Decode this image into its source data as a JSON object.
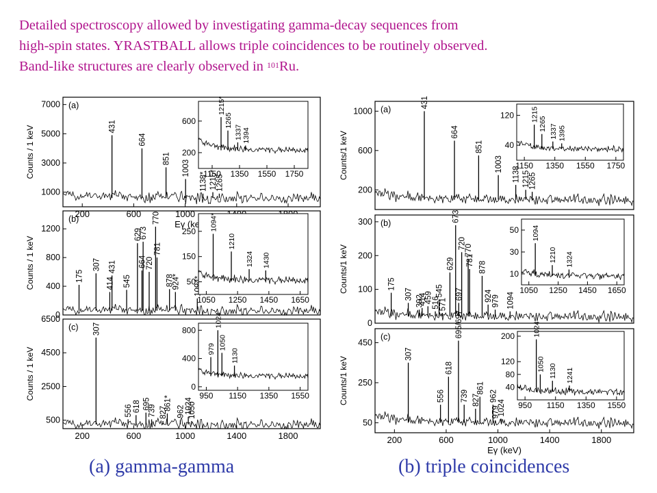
{
  "intro": {
    "line1": "Detailed spectroscopy allowed by investigating gamma-decay sequences from",
    "line2": "high-spin states. YRASTBALL allows triple coincidences to be routinely observed.",
    "line3_pre": "Band-like structures are clearly observed in ",
    "line3_sup": "101",
    "line3_post": "Ru."
  },
  "captions": {
    "a": "(a) gamma-gamma",
    "b": "(b) triple coincidences"
  },
  "chart_data": [
    {
      "type": "line",
      "group": "gamma-gamma",
      "panel": "(a)",
      "xlabel": "Eγ (keV)",
      "ylabel": "Counts / 1 keV",
      "xlim": [
        50,
        2050
      ],
      "ylim": [
        0,
        7500
      ],
      "xticks": [
        200,
        600,
        1000,
        1400,
        1800
      ],
      "yticks": [
        "1000",
        "3000",
        "5000",
        "7000"
      ],
      "baseline": 600,
      "peaks": [
        {
          "label": "431",
          "x": 431,
          "y": 4900
        },
        {
          "label": "664",
          "x": 664,
          "y": 4000
        },
        {
          "label": "851",
          "x": 851,
          "y": 2700
        },
        {
          "label": "1003",
          "x": 1003,
          "y": 1900
        },
        {
          "label": "1138*",
          "x": 1138,
          "y": 900
        },
        {
          "label": "1215*",
          "x": 1215,
          "y": 1000
        },
        {
          "label": "1265",
          "x": 1265,
          "y": 900
        }
      ],
      "inset": {
        "xlim": [
          1050,
          1850
        ],
        "ylim": [
          0,
          850
        ],
        "xticks": [
          1150,
          1350,
          1550,
          1750
        ],
        "yticks": [
          "200",
          "600"
        ],
        "baseline": 230,
        "peaks": [
          {
            "label": "1215*",
            "x": 1215,
            "y": 650
          },
          {
            "label": "1265",
            "x": 1265,
            "y": 480
          },
          {
            "label": "1337",
            "x": 1337,
            "y": 330
          },
          {
            "label": "1394",
            "x": 1394,
            "y": 290
          }
        ]
      }
    },
    {
      "type": "line",
      "group": "gamma-gamma",
      "panel": "(b)",
      "ylabel": "Counts / 1 keV",
      "xlim": [
        50,
        2050
      ],
      "ylim": [
        0,
        1450
      ],
      "yticks": [
        "0",
        "400",
        "800",
        "1200"
      ],
      "baseline": 60,
      "peaks": [
        {
          "label": "175",
          "x": 175,
          "y": 420
        },
        {
          "label": "307",
          "x": 307,
          "y": 580
        },
        {
          "label": "414",
          "x": 414,
          "y": 320
        },
        {
          "label": "431",
          "x": 431,
          "y": 550
        },
        {
          "label": "545",
          "x": 545,
          "y": 350
        },
        {
          "label": "629",
          "x": 629,
          "y": 1000
        },
        {
          "label": "664",
          "x": 664,
          "y": 620
        },
        {
          "label": "673",
          "x": 673,
          "y": 1020
        },
        {
          "label": "720",
          "x": 720,
          "y": 600
        },
        {
          "label": "770",
          "x": 770,
          "y": 1230
        },
        {
          "label": "781",
          "x": 781,
          "y": 800
        },
        {
          "label": "878",
          "x": 878,
          "y": 360
        },
        {
          "label": "924*",
          "x": 924,
          "y": 320
        },
        {
          "label": "1094*",
          "x": 1094,
          "y": 230
        }
      ],
      "inset": {
        "xlim": [
          1000,
          1700
        ],
        "ylim": [
          0,
          320
        ],
        "xticks": [
          1050,
          1250,
          1450,
          1650
        ],
        "yticks": [
          "50",
          "150",
          "250"
        ],
        "baseline": 55,
        "peaks": [
          {
            "label": "1094*",
            "x": 1094,
            "y": 240
          },
          {
            "label": "1210",
            "x": 1210,
            "y": 170
          },
          {
            "label": "1324",
            "x": 1324,
            "y": 100
          },
          {
            "label": "1430",
            "x": 1430,
            "y": 95
          }
        ]
      }
    },
    {
      "type": "line",
      "group": "gamma-gamma",
      "panel": "(c)",
      "ylabel": "Counts / 1 keV",
      "xlim": [
        50,
        2050
      ],
      "ylim": [
        0,
        6500
      ],
      "xticks": [
        200,
        600,
        1000,
        1400,
        1800
      ],
      "yticks": [
        "500",
        "2500",
        "4500",
        "6500"
      ],
      "baseline": 250,
      "peaks": [
        {
          "label": "307",
          "x": 307,
          "y": 5400
        },
        {
          "label": "556",
          "x": 556,
          "y": 550
        },
        {
          "label": "618",
          "x": 618,
          "y": 800
        },
        {
          "label": "695",
          "x": 695,
          "y": 950
        },
        {
          "label": "739",
          "x": 739,
          "y": 550
        },
        {
          "label": "827",
          "x": 827,
          "y": 450
        },
        {
          "label": "861*",
          "x": 861,
          "y": 900
        },
        {
          "label": "962",
          "x": 962,
          "y": 500
        },
        {
          "label": "1024",
          "x": 1024,
          "y": 700
        },
        {
          "label": "1050",
          "x": 1050,
          "y": 450
        }
      ],
      "inset": {
        "xlim": [
          900,
          1600
        ],
        "ylim": [
          -50,
          900
        ],
        "xticks": [
          950,
          1150,
          1350,
          1550
        ],
        "yticks": [
          "0",
          "400",
          "800"
        ],
        "baseline": 150,
        "peaks": [
          {
            "label": "979",
            "x": 979,
            "y": 420
          },
          {
            "label": "1024",
            "x": 1024,
            "y": 800
          },
          {
            "label": "1050",
            "x": 1050,
            "y": 480
          },
          {
            "label": "1130",
            "x": 1130,
            "y": 300
          }
        ]
      }
    },
    {
      "type": "line",
      "group": "triple coincidences",
      "panel": "(a)",
      "ylabel": "Counts/1 keV",
      "xlim": [
        50,
        2050
      ],
      "ylim": [
        0,
        1100
      ],
      "yticks": [
        "200",
        "600",
        "1000"
      ],
      "baseline": 100,
      "peaks": [
        {
          "label": "431",
          "x": 431,
          "y": 1000
        },
        {
          "label": "664",
          "x": 664,
          "y": 700
        },
        {
          "label": "851",
          "x": 851,
          "y": 550
        },
        {
          "label": "1003",
          "x": 1003,
          "y": 350
        },
        {
          "label": "1138",
          "x": 1138,
          "y": 250
        },
        {
          "label": "1215",
          "x": 1215,
          "y": 200
        },
        {
          "label": "1265",
          "x": 1265,
          "y": 180
        }
      ],
      "inset": {
        "xlim": [
          1100,
          1800
        ],
        "ylim": [
          0,
          150
        ],
        "xticks": [
          1150,
          1350,
          1550,
          1750
        ],
        "yticks": [
          "40",
          "120"
        ],
        "baseline": 30,
        "peaks": [
          {
            "label": "1215",
            "x": 1215,
            "y": 95
          },
          {
            "label": "1265",
            "x": 1265,
            "y": 70
          },
          {
            "label": "1337",
            "x": 1337,
            "y": 50
          },
          {
            "label": "1395",
            "x": 1395,
            "y": 45
          }
        ]
      }
    },
    {
      "type": "line",
      "group": "triple coincidences",
      "panel": "(b)",
      "ylabel": "Counts/1 keV",
      "xlim": [
        50,
        2050
      ],
      "ylim": [
        0,
        320
      ],
      "yticks": [
        "0",
        "100",
        "200",
        "300"
      ],
      "baseline": 20,
      "peaks": [
        {
          "label": "175",
          "x": 175,
          "y": 90
        },
        {
          "label": "307",
          "x": 307,
          "y": 60
        },
        {
          "label": "392",
          "x": 392,
          "y": 40
        },
        {
          "label": "414",
          "x": 414,
          "y": 45
        },
        {
          "label": "459",
          "x": 459,
          "y": 50
        },
        {
          "label": "516",
          "x": 516,
          "y": 35
        },
        {
          "label": "545",
          "x": 545,
          "y": 70
        },
        {
          "label": "571",
          "x": 571,
          "y": 30
        },
        {
          "label": "629",
          "x": 629,
          "y": 150
        },
        {
          "label": "673",
          "x": 673,
          "y": 290
        },
        {
          "label": "697",
          "x": 697,
          "y": 60
        },
        {
          "label": "720",
          "x": 720,
          "y": 210
        },
        {
          "label": "770",
          "x": 770,
          "y": 190
        },
        {
          "label": "781",
          "x": 781,
          "y": 160
        },
        {
          "label": "878",
          "x": 878,
          "y": 140
        },
        {
          "label": "924",
          "x": 924,
          "y": 55
        },
        {
          "label": "979",
          "x": 979,
          "y": 40
        },
        {
          "label": "1094",
          "x": 1094,
          "y": 35
        }
      ],
      "inset": {
        "xlim": [
          1000,
          1700
        ],
        "ylim": [
          0,
          60
        ],
        "xticks": [
          1050,
          1250,
          1450,
          1650
        ],
        "yticks": [
          "10",
          "30",
          "50"
        ],
        "baseline": 8,
        "peaks": [
          {
            "label": "1094",
            "x": 1094,
            "y": 38
          },
          {
            "label": "1210",
            "x": 1210,
            "y": 18
          },
          {
            "label": "1324",
            "x": 1324,
            "y": 14
          }
        ]
      }
    },
    {
      "type": "line",
      "group": "triple coincidences",
      "panel": "(c)",
      "xlabel": "Eγ (keV)",
      "ylabel": "Counts/1 keV",
      "xlim": [
        50,
        2050
      ],
      "ylim": [
        0,
        520
      ],
      "xticks": [
        200,
        600,
        1000,
        1400,
        1800
      ],
      "yticks": [
        "50",
        "250",
        "450"
      ],
      "baseline": 50,
      "peaks": [
        {
          "label": "307",
          "x": 307,
          "y": 350
        },
        {
          "label": "556",
          "x": 556,
          "y": 140
        },
        {
          "label": "618",
          "x": 618,
          "y": 280
        },
        {
          "label": "695/697",
          "x": 695,
          "y": 460
        },
        {
          "label": "739",
          "x": 739,
          "y": 140
        },
        {
          "label": "827",
          "x": 827,
          "y": 120
        },
        {
          "label": "861",
          "x": 861,
          "y": 180
        },
        {
          "label": "962",
          "x": 962,
          "y": 140
        },
        {
          "label": "979",
          "x": 979,
          "y": 60
        },
        {
          "label": "1024",
          "x": 1024,
          "y": 70
        }
      ],
      "inset": {
        "xlim": [
          900,
          1600
        ],
        "ylim": [
          0,
          215
        ],
        "xticks": [
          950,
          1150,
          1350,
          1550
        ],
        "yticks": [
          "40",
          "80",
          "120",
          "200"
        ],
        "baseline": 25,
        "peaks": [
          {
            "label": "1024",
            "x": 1024,
            "y": 190
          },
          {
            "label": "1050",
            "x": 1050,
            "y": 80
          },
          {
            "label": "1130",
            "x": 1130,
            "y": 60
          },
          {
            "label": "1241",
            "x": 1241,
            "y": 45
          }
        ]
      }
    }
  ]
}
